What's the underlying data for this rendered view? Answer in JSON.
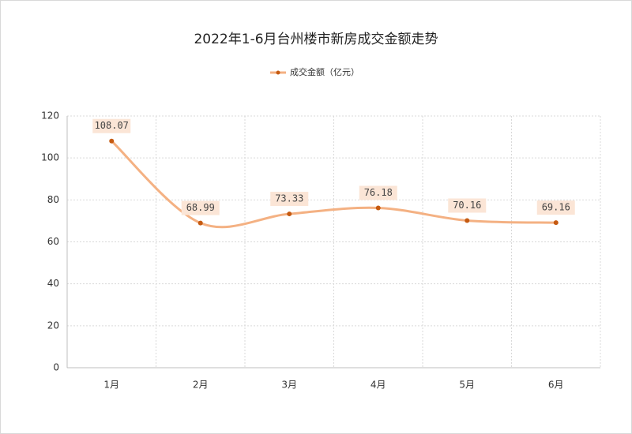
{
  "chart_data": {
    "type": "line",
    "title": "2022年1-6月台州楼市新房成交金额走势",
    "categories": [
      "1月",
      "2月",
      "3月",
      "4月",
      "5月",
      "6月"
    ],
    "series": [
      {
        "name": "成交金额（亿元）",
        "color": "#f4b183",
        "marker_color": "#c55a11",
        "values": [
          108.07,
          68.99,
          73.33,
          76.18,
          70.16,
          69.16
        ]
      }
    ],
    "ylim": [
      0,
      120
    ],
    "yticks": [
      0,
      20,
      40,
      60,
      80,
      100,
      120
    ],
    "grid": true,
    "smooth": true,
    "legend": "top"
  }
}
